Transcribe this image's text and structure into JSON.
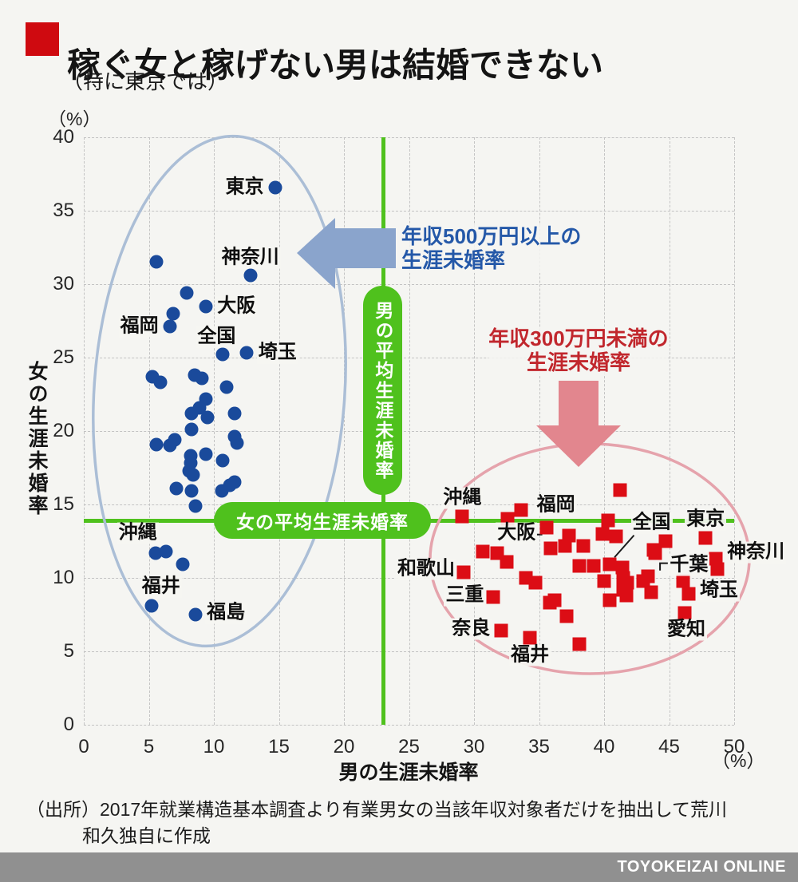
{
  "header": {
    "title": "稼ぐ女と稼げない男は結婚できない",
    "subtitle": "（特に東京では）"
  },
  "source": {
    "line1": "（出所）2017年就業構造基本調査より有業男女の当該年収対象者だけを抽出して荒川",
    "line2": "和久独自に作成"
  },
  "footer": {
    "brand": "TOYOKEIZAI ONLINE"
  },
  "colors": {
    "accent_red": "#cf0a10",
    "green": "#4fc11d",
    "blue_point": "#1a4a9b",
    "red_point": "#dc0d15",
    "blue_arrow": "#8aa4cc",
    "pink_arrow": "#e2868e",
    "blue_ellipse": "#abbed6",
    "pink_ellipse": "#e5a3ac",
    "blue_text": "#2458a8",
    "red_text": "#c1272d",
    "footer_bg": "#909090"
  },
  "chart_data": {
    "type": "scatter",
    "xlabel": "男の生涯未婚率",
    "ylabel": "女の生涯未婚率",
    "x_unit": "（%）",
    "y_unit": "（%）",
    "xlim": [
      0,
      50
    ],
    "ylim": [
      0,
      40
    ],
    "xticks": [
      0,
      5,
      10,
      15,
      20,
      25,
      30,
      35,
      40,
      45,
      50
    ],
    "yticks": [
      0,
      5,
      10,
      15,
      20,
      25,
      30,
      35,
      40
    ],
    "grid": "dashed",
    "mean_lines": {
      "vertical": {
        "value": 23.0,
        "label": "男の平均生涯未婚率"
      },
      "horizontal": {
        "value": 13.9,
        "label": "女の平均生涯未婚率"
      }
    },
    "annotations": {
      "high_income": {
        "lines": [
          "年収500万円以上の",
          "生涯未婚率"
        ]
      },
      "low_income": {
        "lines": [
          "年収300万円未満の",
          "生涯未婚率"
        ]
      }
    },
    "connectors": [
      {
        "for": "全国",
        "points": [
          [
            42.3,
            12.9
          ],
          [
            40.8,
            11.4
          ]
        ]
      },
      {
        "for": "千葉",
        "points": [
          [
            44.9,
            11.0
          ],
          [
            44.3,
            11.0
          ],
          [
            44.3,
            10.5
          ]
        ]
      },
      {
        "for": "大阪",
        "points": [
          [
            34.8,
            12.95
          ],
          [
            35.25,
            12.95
          ]
        ]
      }
    ],
    "series": [
      {
        "name": "年収500万円以上の生涯未婚率",
        "marker": "circle",
        "color": "#1a4a9b",
        "points": [
          {
            "x": 14.7,
            "y": 36.6,
            "label": "東京",
            "anchor": "end",
            "dx": -12,
            "dy": 0
          },
          {
            "x": 5.6,
            "y": 31.5
          },
          {
            "x": 12.8,
            "y": 30.6,
            "label": "神奈川",
            "anchor": "middle",
            "dx": 0,
            "dy": -22
          },
          {
            "x": 7.9,
            "y": 29.4
          },
          {
            "x": 9.4,
            "y": 28.5,
            "label": "大阪",
            "anchor": "start",
            "dx": 12,
            "dy": 0
          },
          {
            "x": 6.9,
            "y": 28.0
          },
          {
            "x": 6.6,
            "y": 27.1,
            "label": "福岡",
            "anchor": "end",
            "dx": -12,
            "dy": 0
          },
          {
            "x": 10.7,
            "y": 25.2,
            "label": "全国",
            "anchor": "middle",
            "dx": -8,
            "dy": -22
          },
          {
            "x": 12.5,
            "y": 25.3,
            "label": "埼玉",
            "anchor": "start",
            "dx": 13,
            "dy": 0
          },
          {
            "x": 5.3,
            "y": 23.7
          },
          {
            "x": 5.9,
            "y": 23.3
          },
          {
            "x": 8.5,
            "y": 23.8
          },
          {
            "x": 9.1,
            "y": 23.6
          },
          {
            "x": 11.0,
            "y": 23.0
          },
          {
            "x": 9.4,
            "y": 22.2
          },
          {
            "x": 8.9,
            "y": 21.6
          },
          {
            "x": 8.3,
            "y": 21.2
          },
          {
            "x": 9.5,
            "y": 20.9
          },
          {
            "x": 11.6,
            "y": 21.2
          },
          {
            "x": 8.3,
            "y": 20.1
          },
          {
            "x": 7.0,
            "y": 19.4
          },
          {
            "x": 5.6,
            "y": 19.1
          },
          {
            "x": 6.6,
            "y": 19.0
          },
          {
            "x": 11.6,
            "y": 19.6
          },
          {
            "x": 11.8,
            "y": 19.2
          },
          {
            "x": 8.2,
            "y": 18.3
          },
          {
            "x": 9.4,
            "y": 18.4
          },
          {
            "x": 10.7,
            "y": 18.0
          },
          {
            "x": 8.2,
            "y": 17.8
          },
          {
            "x": 8.1,
            "y": 17.3
          },
          {
            "x": 8.4,
            "y": 17.0
          },
          {
            "x": 11.2,
            "y": 16.3
          },
          {
            "x": 11.6,
            "y": 16.5
          },
          {
            "x": 7.1,
            "y": 16.1
          },
          {
            "x": 8.3,
            "y": 15.9
          },
          {
            "x": 10.6,
            "y": 15.9
          },
          {
            "x": 8.6,
            "y": 14.9
          },
          {
            "x": 5.5,
            "y": 11.7,
            "label": "沖縄",
            "anchor": "middle",
            "dx": -22,
            "dy": -25
          },
          {
            "x": 6.3,
            "y": 11.8
          },
          {
            "x": 7.6,
            "y": 10.9
          },
          {
            "x": 5.2,
            "y": 8.1,
            "label": "福井",
            "anchor": "middle",
            "dx": 12,
            "dy": -24
          },
          {
            "x": 8.6,
            "y": 7.5,
            "label": "福島",
            "anchor": "start",
            "dx": 12,
            "dy": -2
          }
        ]
      },
      {
        "name": "年収300万円未満の生涯未婚率",
        "marker": "square",
        "color": "#dc0d15",
        "points": [
          {
            "x": 41.2,
            "y": 16.0
          },
          {
            "x": 29.1,
            "y": 14.2,
            "label": "沖縄",
            "anchor": "middle",
            "dx": 0,
            "dy": -23
          },
          {
            "x": 33.6,
            "y": 14.6,
            "label": "福岡",
            "anchor": "start",
            "dx": 18,
            "dy": -6
          },
          {
            "x": 32.6,
            "y": 14.0
          },
          {
            "x": 40.3,
            "y": 13.9
          },
          {
            "x": 35.6,
            "y": 13.4,
            "label": "大阪",
            "anchor": "end",
            "dx": -12,
            "dy": 7
          },
          {
            "x": 37.3,
            "y": 12.9
          },
          {
            "x": 39.9,
            "y": 13.0
          },
          {
            "x": 40.9,
            "y": 12.8
          },
          {
            "x": 47.8,
            "y": 12.7,
            "label": "東京",
            "anchor": "middle",
            "dx": 0,
            "dy": -23
          },
          {
            "x": 44.7,
            "y": 12.5
          },
          {
            "x": 43.8,
            "y": 11.9
          },
          {
            "x": 43.9,
            "y": 11.7
          },
          {
            "x": 35.9,
            "y": 12.0
          },
          {
            "x": 37.0,
            "y": 12.2
          },
          {
            "x": 38.4,
            "y": 12.2
          },
          {
            "x": 30.7,
            "y": 11.8
          },
          {
            "x": 31.8,
            "y": 11.7
          },
          {
            "x": 32.5,
            "y": 11.1
          },
          {
            "x": 40.4,
            "y": 10.9,
            "label": "全国",
            "anchor": "start",
            "dx": 27,
            "dy": -52
          },
          {
            "x": 48.6,
            "y": 11.3,
            "label": "神奈川",
            "anchor": "start",
            "dx": 12,
            "dy": -8
          },
          {
            "x": 48.7,
            "y": 10.6
          },
          {
            "x": 38.1,
            "y": 10.8
          },
          {
            "x": 39.2,
            "y": 10.8
          },
          {
            "x": 41.4,
            "y": 10.7
          },
          {
            "x": 29.2,
            "y": 10.4,
            "label": "和歌山",
            "anchor": "end",
            "dx": -9,
            "dy": -4
          },
          {
            "x": 43.4,
            "y": 10.1,
            "label": "千葉",
            "anchor": "start",
            "dx": 25,
            "dy": -14
          },
          {
            "x": 43.0,
            "y": 9.8
          },
          {
            "x": 34.0,
            "y": 10.0
          },
          {
            "x": 34.7,
            "y": 9.7
          },
          {
            "x": 40.0,
            "y": 9.8
          },
          {
            "x": 41.5,
            "y": 10.0
          },
          {
            "x": 41.8,
            "y": 9.7
          },
          {
            "x": 41.5,
            "y": 9.2
          },
          {
            "x": 41.7,
            "y": 8.8
          },
          {
            "x": 43.6,
            "y": 9.0
          },
          {
            "x": 46.1,
            "y": 9.8
          },
          {
            "x": 46.5,
            "y": 8.9,
            "label": "埼玉",
            "anchor": "start",
            "dx": 12,
            "dy": -4
          },
          {
            "x": 31.5,
            "y": 8.7,
            "label": "三重",
            "anchor": "end",
            "dx": -10,
            "dy": -2
          },
          {
            "x": 40.4,
            "y": 8.5
          },
          {
            "x": 35.8,
            "y": 8.3
          },
          {
            "x": 36.2,
            "y": 8.5
          },
          {
            "x": 37.1,
            "y": 7.4
          },
          {
            "x": 46.2,
            "y": 7.6,
            "label": "愛知",
            "anchor": "middle",
            "dx": 2,
            "dy": 21
          },
          {
            "x": 32.1,
            "y": 6.4,
            "label": "奈良",
            "anchor": "end",
            "dx": -12,
            "dy": -2
          },
          {
            "x": 34.3,
            "y": 5.9,
            "label": "福井",
            "anchor": "middle",
            "dx": 0,
            "dy": 22
          },
          {
            "x": 38.1,
            "y": 5.5
          }
        ]
      }
    ]
  }
}
